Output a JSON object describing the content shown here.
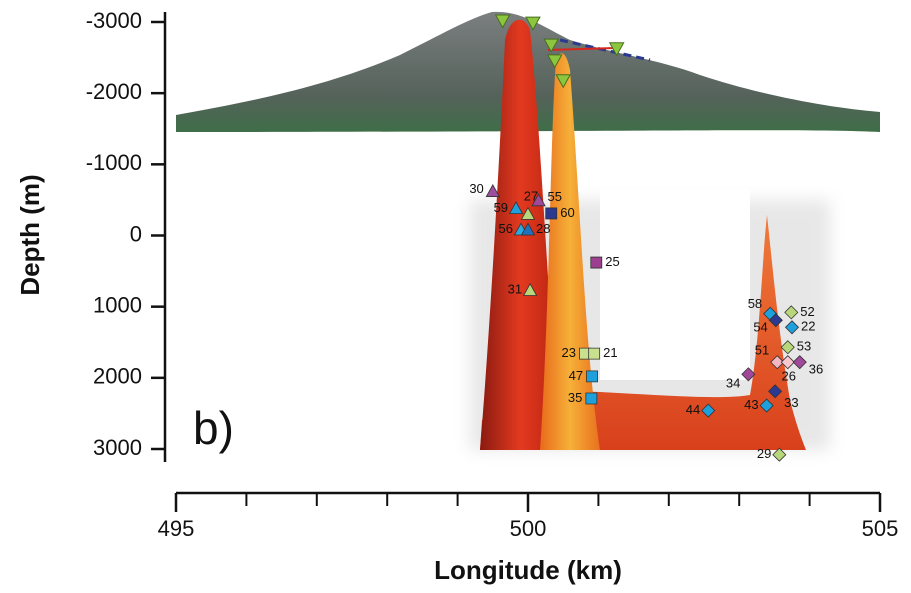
{
  "chart_data": {
    "type": "scatter",
    "xlabel": "Longitude (km)",
    "ylabel": "Depth (m)",
    "panel_label": "b)",
    "xlim": [
      495,
      505
    ],
    "xticks": [
      495,
      500,
      505
    ],
    "xminor_ticks": [
      496,
      497,
      498,
      499,
      501,
      502,
      503,
      504
    ],
    "ylim": [
      3000,
      -3000
    ],
    "yticks": [
      -3000,
      -2000,
      -1000,
      0,
      1000,
      2000,
      3000
    ],
    "points": [
      {
        "label": "30",
        "x": 499.5,
        "y": -620,
        "marker": "triangle",
        "color": "#9b4f9e"
      },
      {
        "label": "27",
        "x": 500.0,
        "y": -300,
        "marker": "triangle",
        "color": "#b7d77a"
      },
      {
        "label": "55",
        "x": 500.15,
        "y": -490,
        "marker": "triangle",
        "color": "#a0489a"
      },
      {
        "label": "59",
        "x": 499.83,
        "y": -380,
        "marker": "triangle",
        "color": "#1ea0dc"
      },
      {
        "label": "60",
        "x": 500.33,
        "y": -310,
        "marker": "square",
        "color": "#2b3990"
      },
      {
        "label": "56",
        "x": 499.9,
        "y": -80,
        "marker": "triangle",
        "color": "#29abe2"
      },
      {
        "label": "28",
        "x": 500.0,
        "y": -80,
        "marker": "triangle",
        "color": "#1e73be"
      },
      {
        "label": "25",
        "x": 500.97,
        "y": 380,
        "marker": "square",
        "color": "#9b3f8e"
      },
      {
        "label": "31",
        "x": 500.03,
        "y": 770,
        "marker": "triangle",
        "color": "#b7d77a"
      },
      {
        "label": "23",
        "x": 500.81,
        "y": 1660,
        "marker": "square",
        "color": "#c9e08f"
      },
      {
        "label": "21",
        "x": 500.94,
        "y": 1660,
        "marker": "square",
        "color": "#c9e08f"
      },
      {
        "label": "47",
        "x": 500.91,
        "y": 1980,
        "marker": "square",
        "color": "#1ea0dc"
      },
      {
        "label": "35",
        "x": 500.9,
        "y": 2290,
        "marker": "square",
        "color": "#1ea0dc"
      },
      {
        "label": "44",
        "x": 502.56,
        "y": 2460,
        "marker": "diamond",
        "color": "#1ea0dc"
      },
      {
        "label": "58",
        "x": 503.44,
        "y": 1100,
        "marker": "diamond",
        "color": "#1ea0dc"
      },
      {
        "label": "52",
        "x": 503.74,
        "y": 1080,
        "marker": "diamond",
        "color": "#b7d77a"
      },
      {
        "label": "54",
        "x": 503.52,
        "y": 1190,
        "marker": "diamond",
        "color": "#2b3990"
      },
      {
        "label": "22",
        "x": 503.75,
        "y": 1290,
        "marker": "diamond",
        "color": "#1ea0dc"
      },
      {
        "label": "51",
        "x": 503.54,
        "y": 1780,
        "marker": "diamond",
        "color": "#f4b6c2"
      },
      {
        "label": "53",
        "x": 503.69,
        "y": 1570,
        "marker": "diamond",
        "color": "#b7d77a"
      },
      {
        "label": "26",
        "x": 503.69,
        "y": 1780,
        "marker": "diamond",
        "color": "#f7c8d0"
      },
      {
        "label": "36",
        "x": 503.86,
        "y": 1780,
        "marker": "diamond",
        "color": "#a0489a"
      },
      {
        "label": "34",
        "x": 503.13,
        "y": 1950,
        "marker": "diamond",
        "color": "#a0489a"
      },
      {
        "label": "33",
        "x": 503.51,
        "y": 2190,
        "marker": "diamond",
        "color": "#2b3990"
      },
      {
        "label": "43",
        "x": 503.39,
        "y": 2390,
        "marker": "diamond",
        "color": "#1ea0dc"
      },
      {
        "label": "29",
        "x": 503.57,
        "y": 3080,
        "marker": "diamond",
        "color": "#b7d77a"
      }
    ],
    "stations": {
      "marker": "inverted-triangle",
      "color": "#8cc63f",
      "x": [
        499.64,
        500.07,
        500.33,
        500.38,
        501.26,
        500.5
      ],
      "y": [
        -3020,
        -2990,
        -2680,
        -2460,
        -2630,
        -2180
      ]
    }
  }
}
